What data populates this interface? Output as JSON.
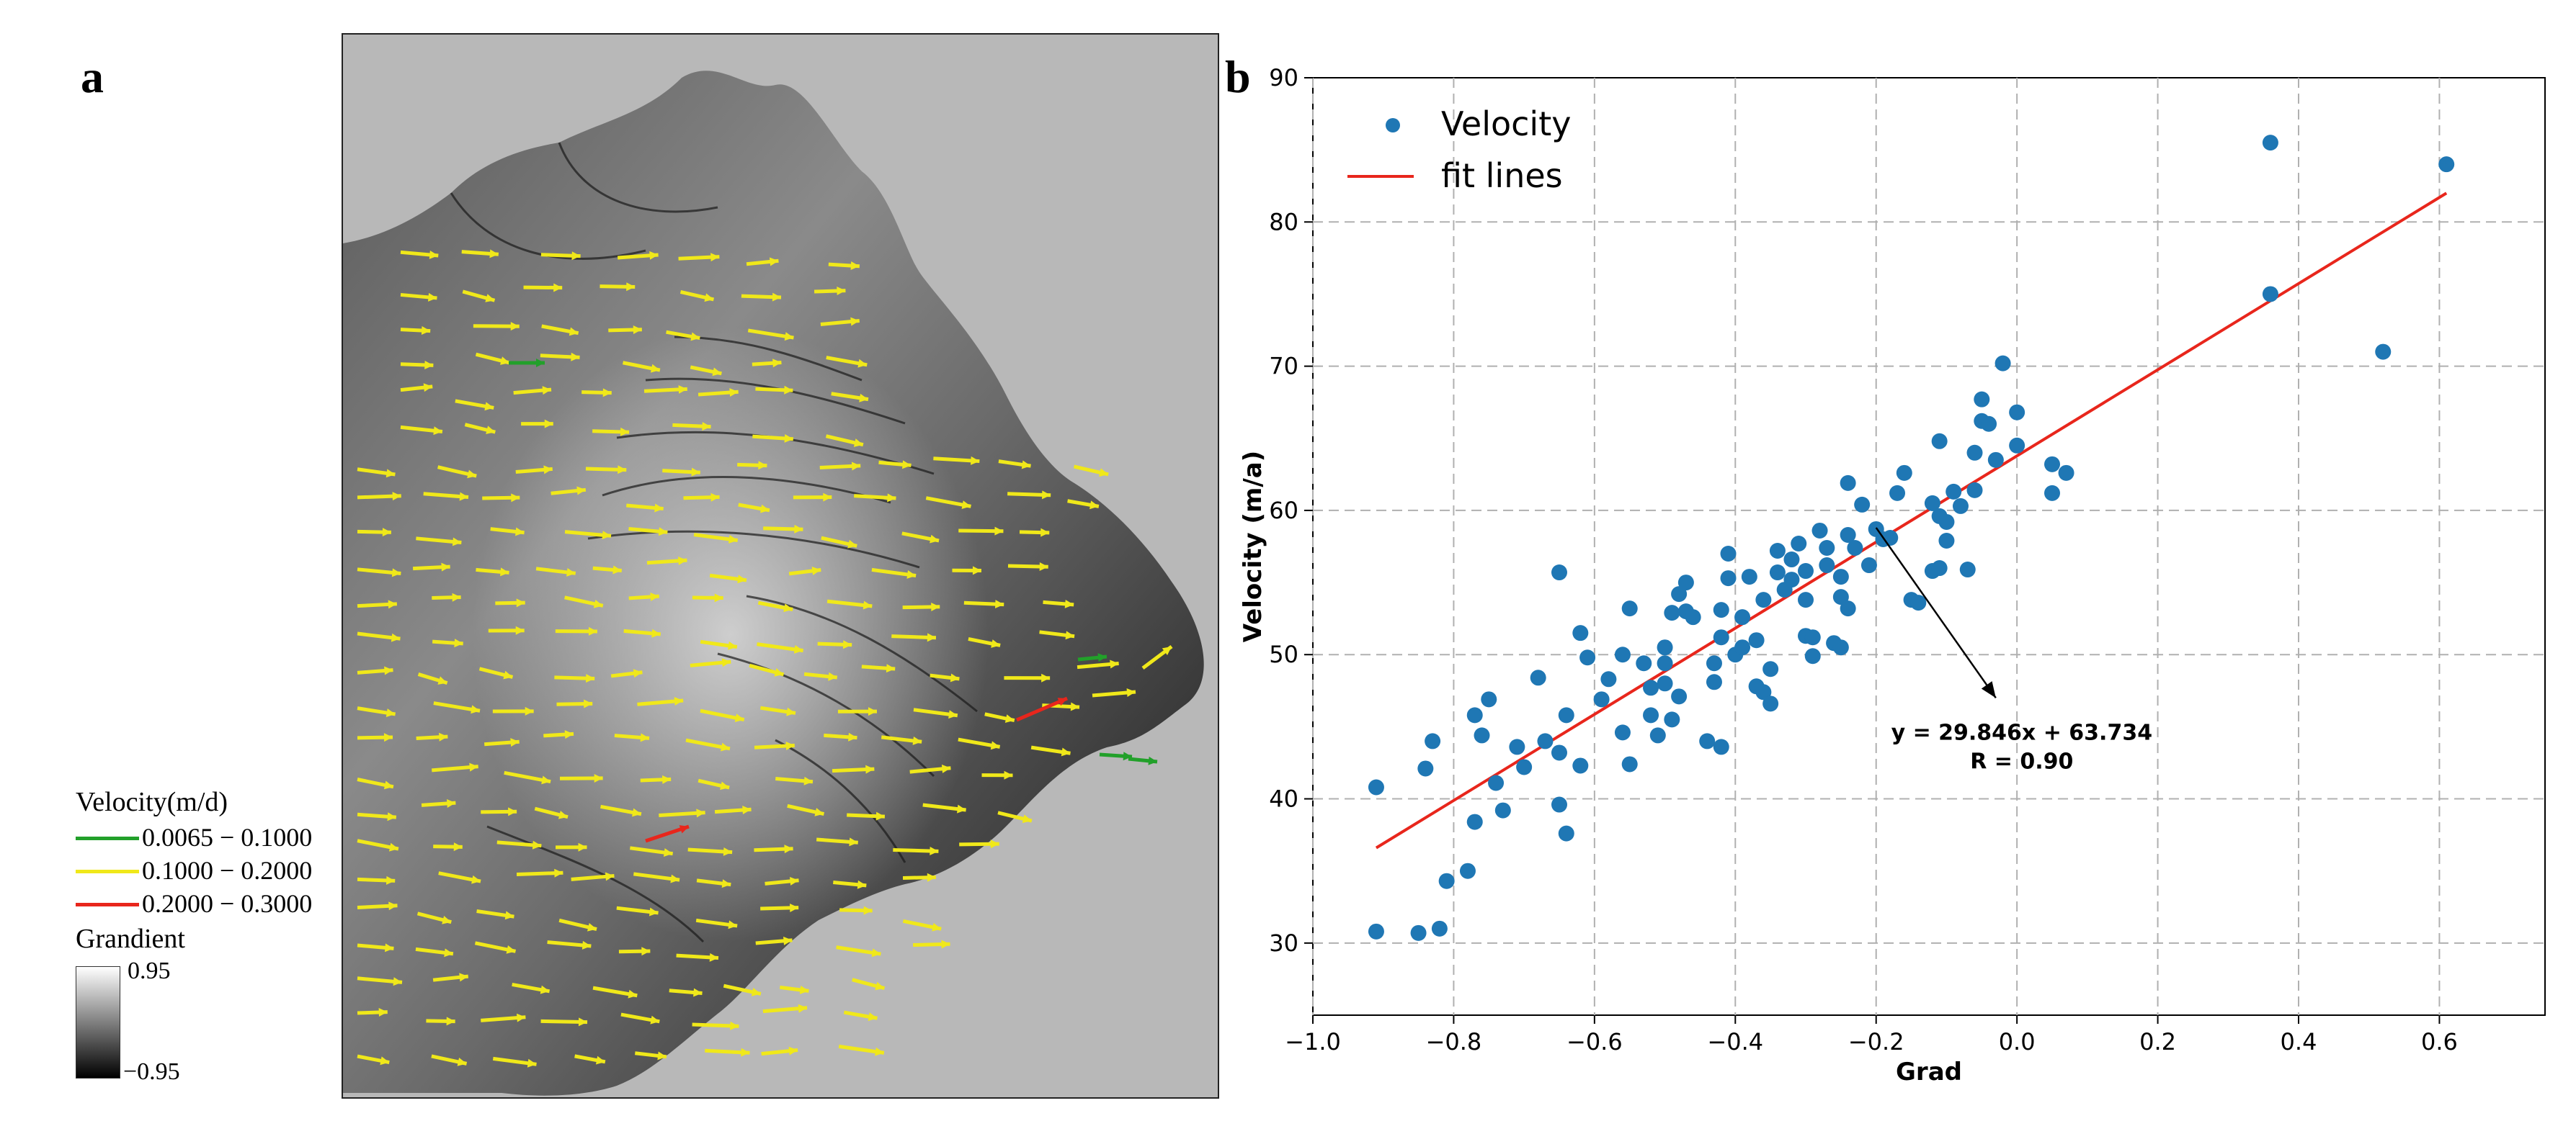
{
  "panel_a": {
    "label": "a",
    "legend": {
      "title": "Velocity(m/d)",
      "items": [
        {
          "label": "0.0065 − 0.1000",
          "color": "#22a02a"
        },
        {
          "label": "0.1000 − 0.2000",
          "color": "#f0e81a"
        },
        {
          "label": "0.2000 − 0.3000",
          "color": "#e8261c"
        }
      ],
      "gradient_title": "Grandient",
      "gradient_max": "0.95",
      "gradient_min": "−0.95"
    }
  },
  "panel_b": {
    "label": "b"
  },
  "chart_data": {
    "type": "scatter",
    "title": "",
    "xlabel": "Grad",
    "ylabel": "Velocity (m/a)",
    "xlim": [
      -1.0,
      0.75
    ],
    "ylim": [
      25,
      90
    ],
    "xticks": [
      "−1.0",
      "−0.8",
      "−0.6",
      "−0.4",
      "−0.2",
      "0.0",
      "0.2",
      "0.4",
      "0.6"
    ],
    "yticks": [
      "30",
      "40",
      "50",
      "60",
      "70",
      "80",
      "90"
    ],
    "grid": true,
    "legend_position": "top-left",
    "marker_color": "#1f77b4",
    "fit_color": "#e8261c",
    "series": [
      {
        "name": "Velocity",
        "kind": "scatter",
        "points": [
          [
            -0.91,
            40.8
          ],
          [
            -0.91,
            30.8
          ],
          [
            -0.85,
            30.7
          ],
          [
            -0.82,
            31.0
          ],
          [
            -0.81,
            34.3
          ],
          [
            -0.84,
            42.1
          ],
          [
            -0.83,
            44.0
          ],
          [
            -0.78,
            35.0
          ],
          [
            -0.77,
            38.4
          ],
          [
            -0.76,
            44.4
          ],
          [
            -0.77,
            45.8
          ],
          [
            -0.75,
            46.9
          ],
          [
            -0.74,
            41.1
          ],
          [
            -0.73,
            39.2
          ],
          [
            -0.71,
            43.6
          ],
          [
            -0.7,
            42.2
          ],
          [
            -0.68,
            48.4
          ],
          [
            -0.67,
            44.0
          ],
          [
            -0.65,
            43.2
          ],
          [
            -0.65,
            39.6
          ],
          [
            -0.64,
            37.6
          ],
          [
            -0.64,
            45.8
          ],
          [
            -0.65,
            55.7
          ],
          [
            -0.62,
            42.3
          ],
          [
            -0.62,
            51.5
          ],
          [
            -0.61,
            49.8
          ],
          [
            -0.59,
            46.9
          ],
          [
            -0.58,
            48.3
          ],
          [
            -0.56,
            50.0
          ],
          [
            -0.55,
            53.2
          ],
          [
            -0.56,
            44.6
          ],
          [
            -0.55,
            42.4
          ],
          [
            -0.53,
            49.4
          ],
          [
            -0.52,
            47.7
          ],
          [
            -0.52,
            45.8
          ],
          [
            -0.51,
            44.4
          ],
          [
            -0.5,
            48.0
          ],
          [
            -0.49,
            45.5
          ],
          [
            -0.48,
            47.1
          ],
          [
            -0.49,
            52.9
          ],
          [
            -0.48,
            54.2
          ],
          [
            -0.47,
            53.0
          ],
          [
            -0.5,
            50.5
          ],
          [
            -0.5,
            49.4
          ],
          [
            -0.47,
            55.0
          ],
          [
            -0.46,
            52.6
          ],
          [
            -0.44,
            44.0
          ],
          [
            -0.42,
            43.6
          ],
          [
            -0.43,
            48.1
          ],
          [
            -0.43,
            49.4
          ],
          [
            -0.42,
            51.2
          ],
          [
            -0.42,
            53.1
          ],
          [
            -0.41,
            55.3
          ],
          [
            -0.41,
            57.0
          ],
          [
            -0.4,
            50.0
          ],
          [
            -0.39,
            52.6
          ],
          [
            -0.39,
            50.5
          ],
          [
            -0.38,
            55.4
          ],
          [
            -0.37,
            51.0
          ],
          [
            -0.37,
            47.8
          ],
          [
            -0.36,
            47.4
          ],
          [
            -0.35,
            49.0
          ],
          [
            -0.35,
            46.6
          ],
          [
            -0.36,
            53.8
          ],
          [
            -0.34,
            55.7
          ],
          [
            -0.34,
            57.2
          ],
          [
            -0.33,
            54.5
          ],
          [
            -0.32,
            55.2
          ],
          [
            -0.32,
            56.6
          ],
          [
            -0.31,
            57.7
          ],
          [
            -0.3,
            55.8
          ],
          [
            -0.3,
            53.8
          ],
          [
            -0.3,
            51.3
          ],
          [
            -0.29,
            49.9
          ],
          [
            -0.29,
            51.2
          ],
          [
            -0.28,
            58.6
          ],
          [
            -0.27,
            57.4
          ],
          [
            -0.27,
            56.2
          ],
          [
            -0.25,
            55.4
          ],
          [
            -0.25,
            54.0
          ],
          [
            -0.24,
            53.2
          ],
          [
            -0.26,
            50.8
          ],
          [
            -0.25,
            50.5
          ],
          [
            -0.24,
            58.3
          ],
          [
            -0.23,
            57.4
          ],
          [
            -0.22,
            60.4
          ],
          [
            -0.24,
            61.9
          ],
          [
            -0.21,
            56.2
          ],
          [
            -0.2,
            58.7
          ],
          [
            -0.19,
            58.0
          ],
          [
            -0.18,
            58.1
          ],
          [
            -0.17,
            61.2
          ],
          [
            -0.16,
            62.6
          ],
          [
            -0.15,
            53.8
          ],
          [
            -0.14,
            53.6
          ],
          [
            -0.12,
            55.8
          ],
          [
            -0.11,
            56.0
          ],
          [
            -0.1,
            57.9
          ],
          [
            -0.1,
            59.2
          ],
          [
            -0.09,
            61.3
          ],
          [
            -0.11,
            59.6
          ],
          [
            -0.12,
            60.5
          ],
          [
            -0.11,
            64.8
          ],
          [
            -0.08,
            60.3
          ],
          [
            -0.07,
            55.9
          ],
          [
            -0.06,
            61.4
          ],
          [
            -0.06,
            64.0
          ],
          [
            -0.05,
            67.7
          ],
          [
            -0.05,
            66.2
          ],
          [
            -0.04,
            66.0
          ],
          [
            -0.03,
            63.5
          ],
          [
            -0.02,
            70.2
          ],
          [
            0.0,
            64.5
          ],
          [
            0.0,
            66.8
          ],
          [
            0.05,
            61.2
          ],
          [
            0.05,
            63.2
          ],
          [
            0.07,
            62.6
          ],
          [
            0.36,
            85.5
          ],
          [
            0.36,
            75.0
          ],
          [
            0.52,
            71.0
          ],
          [
            0.61,
            84.0
          ]
        ]
      },
      {
        "name": "fit lines",
        "kind": "line",
        "x": [
          -0.91,
          0.61
        ],
        "y": [
          36.6,
          82.0
        ]
      }
    ],
    "annotation": {
      "text": "y = 29.846x + 63.734",
      "text2": "R = 0.90",
      "xy": [
        -0.2,
        58.8
      ],
      "xytext": [
        -0.03,
        47.0
      ]
    }
  }
}
